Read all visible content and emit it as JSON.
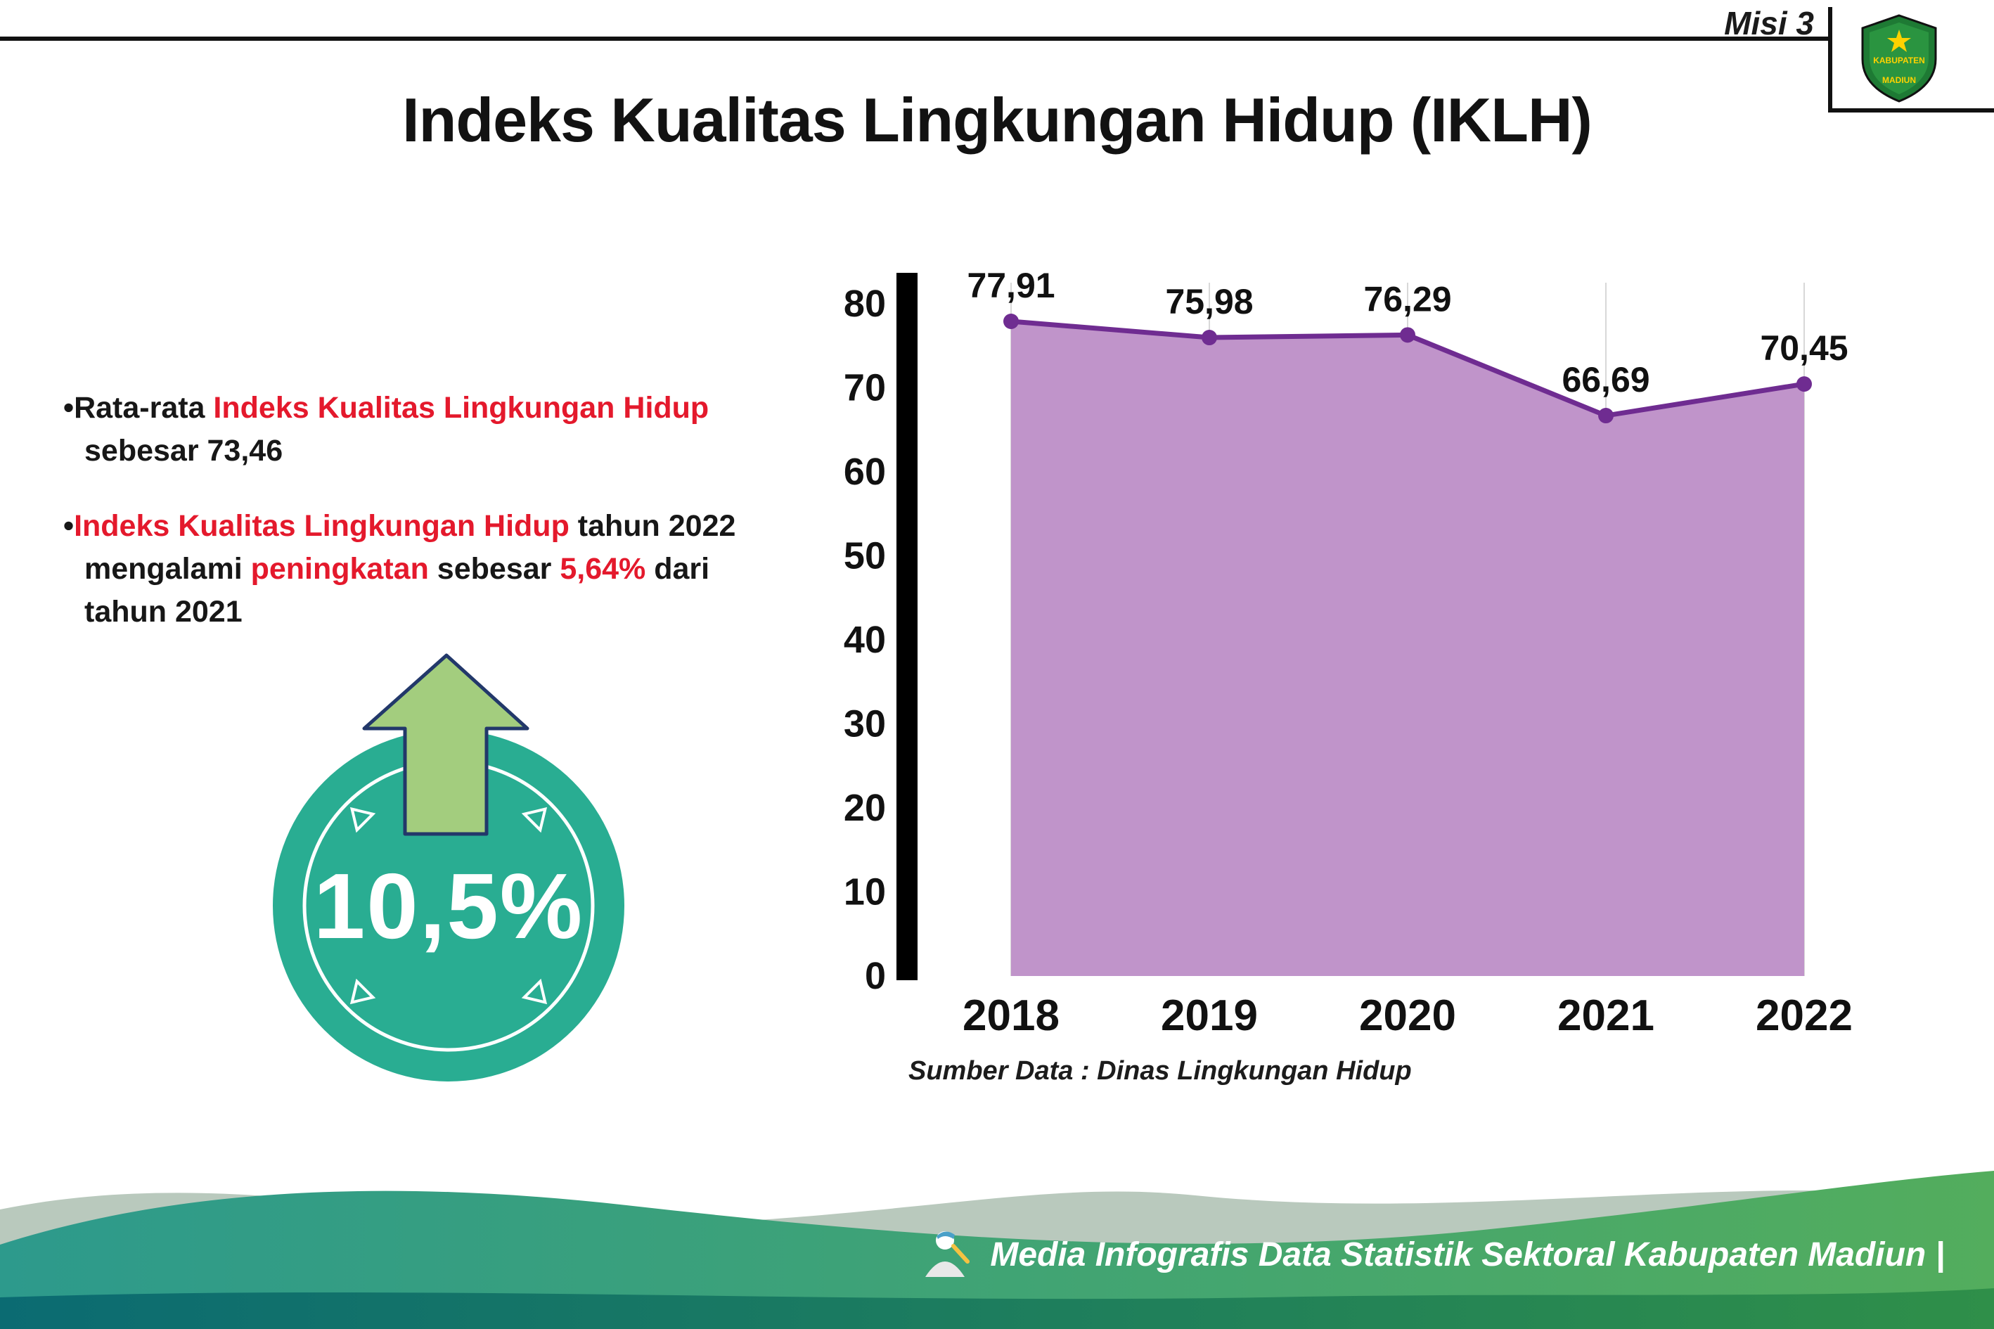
{
  "header": {
    "misi_label": "Misi 3"
  },
  "logo": {
    "line1": "KABUPATEN",
    "line2": "MADIUN"
  },
  "title": "Indeks Kualitas Lingkungan Hidup (IKLH)",
  "bullets": [
    {
      "segments": [
        {
          "text": "Rata-rata ",
          "color": "black"
        },
        {
          "text": "Indeks Kualitas Lingkungan Hidup",
          "color": "red"
        },
        {
          "text": " sebesar 73,46",
          "color": "black"
        }
      ]
    },
    {
      "segments": [
        {
          "text": "Indeks Kualitas Lingkungan Hidup",
          "color": "red"
        },
        {
          "text": " tahun 2022 mengalami ",
          "color": "black"
        },
        {
          "text": "peningkatan",
          "color": "red"
        },
        {
          "text": " sebesar ",
          "color": "black"
        },
        {
          "text": "5,64%",
          "color": "red"
        },
        {
          "text": " dari tahun 2021",
          "color": "black"
        }
      ]
    }
  ],
  "badge": {
    "value": "10,5%"
  },
  "chart_data": {
    "type": "area",
    "title": "Indeks Kualitas Lingkungan Hidup (IKLH)",
    "categories": [
      "2018",
      "2019",
      "2020",
      "2021",
      "2022"
    ],
    "values": [
      77.91,
      75.98,
      76.29,
      66.69,
      70.45
    ],
    "labels": [
      "77,91",
      "75,98",
      "76,29",
      "66,69",
      "70,45"
    ],
    "ylim": [
      0,
      80
    ],
    "yticks": [
      0,
      10,
      20,
      30,
      40,
      50,
      60,
      70,
      80
    ],
    "grid": "vertical",
    "legend": "none",
    "source": "Sumber Data : Dinas Lingkungan Hidup",
    "colors": {
      "fill": "#c094ca",
      "line": "#6f2c91"
    }
  },
  "footer": {
    "text": "Media Infografis Data Statistik Sektoral Kabupaten Madiun |"
  },
  "colors": {
    "accent_red": "#e4192c",
    "badge_teal": "#29ad92",
    "arrow_green": "#a3cd7e",
    "footer_teal": "#2d9a8c",
    "footer_green": "#53ad5d"
  }
}
